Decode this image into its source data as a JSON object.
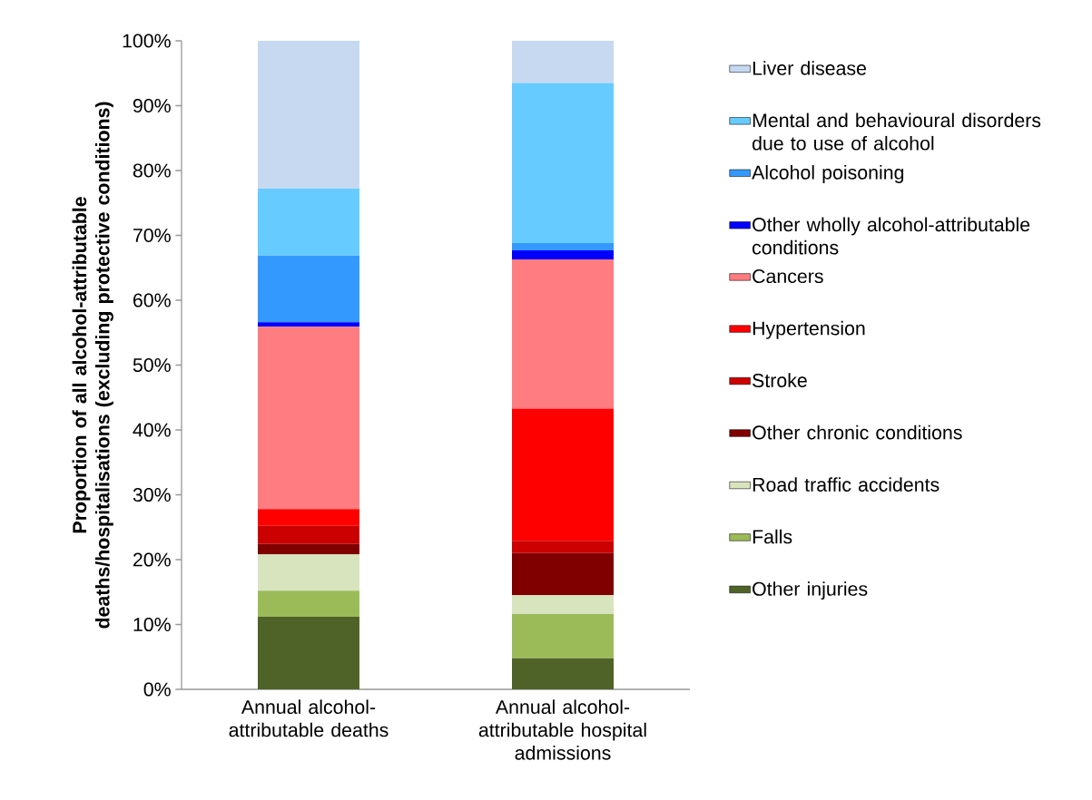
{
  "chart_data": {
    "type": "bar",
    "stacked": true,
    "ylabel": "Proportion of all alcohol-attributable deaths/hospitalisations (excluding protective conditions)",
    "categories": [
      "Annual alcohol-attributable deaths",
      "Annual alcohol-attributable hospital admissions"
    ],
    "ylim": [
      0,
      100
    ],
    "yticks": [
      {
        "value": 0,
        "label": "0%"
      },
      {
        "value": 10,
        "label": "10%"
      },
      {
        "value": 20,
        "label": "20%"
      },
      {
        "value": 30,
        "label": "30%"
      },
      {
        "value": 40,
        "label": "40%"
      },
      {
        "value": 50,
        "label": "50%"
      },
      {
        "value": 60,
        "label": "60%"
      },
      {
        "value": 70,
        "label": "70%"
      },
      {
        "value": 80,
        "label": "80%"
      },
      {
        "value": 90,
        "label": "90%"
      },
      {
        "value": 100,
        "label": "100%"
      }
    ],
    "legend": "right",
    "grid": false,
    "series": [
      {
        "name": "Other injuries",
        "color": "#4f6228",
        "values": [
          11.2,
          4.8
        ]
      },
      {
        "name": "Falls",
        "color": "#9bbb59",
        "values": [
          4.0,
          6.8
        ]
      },
      {
        "name": "Road traffic accidents",
        "color": "#d7e4bd",
        "values": [
          5.6,
          2.9
        ]
      },
      {
        "name": "Other chronic conditions",
        "color": "#800000",
        "values": [
          1.6,
          6.5
        ]
      },
      {
        "name": "Stroke",
        "color": "#cc0000",
        "values": [
          2.8,
          1.9
        ]
      },
      {
        "name": "Hypertension",
        "color": "#ff0000",
        "values": [
          2.6,
          20.4
        ]
      },
      {
        "name": "Cancers",
        "color": "#ff7c80",
        "values": [
          28.1,
          23.0
        ]
      },
      {
        "name": "Other wholly alcohol-attributable conditions",
        "color": "#0000ff",
        "values": [
          0.7,
          1.4
        ]
      },
      {
        "name": "Alcohol poisoning",
        "color": "#3399ff",
        "values": [
          10.3,
          1.1
        ]
      },
      {
        "name": "Mental and behavioural disorders due to use of alcohol",
        "color": "#66ccff",
        "values": [
          10.3,
          24.7
        ]
      },
      {
        "name": "Liver disease",
        "color": "#c6d9f1",
        "values": [
          22.8,
          6.5
        ]
      }
    ]
  }
}
